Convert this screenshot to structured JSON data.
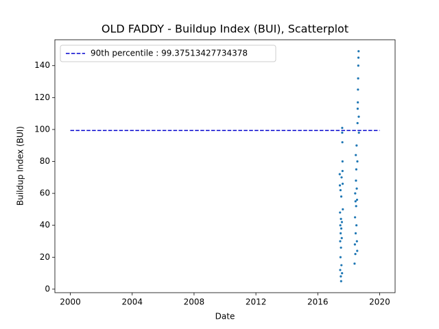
{
  "chart_data": {
    "type": "scatter",
    "title": "OLD FADDY - Buildup Index (BUI), Scatterplot",
    "xlabel": "Date",
    "ylabel": "Buildup Index (BUI)",
    "x": [
      2017.42,
      2017.43,
      2017.44,
      2017.45,
      2017.45,
      2017.46,
      2017.47,
      2017.47,
      2017.48,
      2017.49,
      2017.5,
      2017.5,
      2017.51,
      2017.52,
      2017.52,
      2017.53,
      2017.54,
      2017.55,
      2017.56,
      2017.57,
      2017.58,
      2017.58,
      2017.59,
      2017.6,
      2017.6,
      2017.61,
      2017.62,
      2018.38,
      2018.4,
      2018.41,
      2018.42,
      2018.43,
      2018.44,
      2018.45,
      2018.46,
      2018.47,
      2018.48,
      2018.49,
      2018.5,
      2018.51,
      2018.52,
      2018.53,
      2018.54,
      2018.55,
      2018.56,
      2018.57,
      2018.58,
      2018.59,
      2018.6,
      2018.61,
      2018.62,
      2018.63,
      2018.64,
      2018.65,
      2018.66
    ],
    "values": [
      72,
      65,
      48,
      30,
      12,
      40,
      62,
      20,
      35,
      8,
      44,
      26,
      5,
      58,
      38,
      15,
      70,
      32,
      42,
      10,
      98,
      101,
      92,
      80,
      74,
      66,
      50,
      16,
      28,
      45,
      60,
      22,
      55,
      35,
      84,
      68,
      52,
      75,
      40,
      90,
      63,
      30,
      56,
      24,
      80,
      104,
      113,
      117,
      125,
      132,
      140,
      145,
      149,
      108,
      98
    ],
    "color": "#1f77b4",
    "hline": {
      "label": "90th percentile : 99.37513427734378",
      "value": 99.37513427734378,
      "xmin": 2000,
      "xmax": 2020,
      "color": "#0000cd"
    },
    "xlim": [
      1999,
      2021
    ],
    "ylim": [
      -2.2,
      156.2
    ],
    "xticks": [
      2000,
      2004,
      2008,
      2012,
      2016,
      2020
    ],
    "yticks": [
      0,
      20,
      40,
      60,
      80,
      100,
      120,
      140
    ],
    "legend": "upper left"
  }
}
